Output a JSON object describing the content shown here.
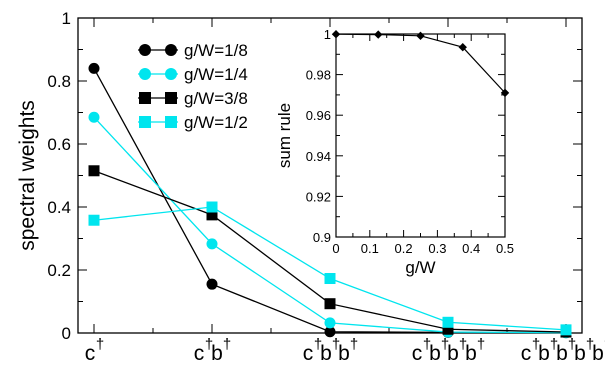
{
  "chart_data": [
    {
      "type": "line",
      "ylabel": "spectral weights",
      "ylim": [
        0,
        1
      ],
      "yticks": [
        0,
        0.2,
        0.4,
        0.6,
        0.8,
        1
      ],
      "ytick_labels": [
        "0",
        "0.2",
        "0.4",
        "0.6",
        "0.8",
        "1"
      ],
      "categories": [
        "c†",
        "c†b†",
        "c†b†b†",
        "c†b†b†b†",
        "c†b†b†b†b†"
      ],
      "category_tokens": [
        [
          "c"
        ],
        [
          "c",
          "b"
        ],
        [
          "c",
          "b",
          "b"
        ],
        [
          "c",
          "b",
          "b",
          "b"
        ],
        [
          "c",
          "b",
          "b",
          "b",
          "b"
        ]
      ],
      "dagger": "†",
      "legend_position": "top-center",
      "series": [
        {
          "name": "g/W=1/8",
          "marker": "circle",
          "color": "#000000",
          "values": [
            0.84,
            0.155,
            0.004,
            0.002,
            0.001
          ]
        },
        {
          "name": "g/W=1/4",
          "marker": "circle",
          "color": "#00e5ee",
          "values": [
            0.685,
            0.283,
            0.032,
            0.003,
            0.001
          ]
        },
        {
          "name": "g/W=3/8",
          "marker": "square",
          "color": "#000000",
          "values": [
            0.515,
            0.375,
            0.093,
            0.012,
            0.003
          ]
        },
        {
          "name": "g/W=1/2",
          "marker": "square",
          "color": "#00e5ee",
          "values": [
            0.358,
            0.4,
            0.173,
            0.034,
            0.01
          ]
        }
      ]
    },
    {
      "type": "line",
      "xlabel": "g/W",
      "ylabel": "sum rule",
      "xlim": [
        0,
        0.5
      ],
      "ylim": [
        0.9,
        1
      ],
      "xticks": [
        0,
        0.1,
        0.2,
        0.3,
        0.4,
        0.5
      ],
      "xtick_labels": [
        "0",
        "0.1",
        "0.2",
        "0.3",
        "0.4",
        "0.5"
      ],
      "yticks": [
        0.9,
        0.92,
        0.94,
        0.96,
        0.98,
        1
      ],
      "ytick_labels": [
        "0.9",
        "0.92",
        "0.94",
        "0.96",
        "0.98",
        "1"
      ],
      "series": [
        {
          "marker": "diamond",
          "color": "#000000",
          "x": [
            0,
            0.125,
            0.25,
            0.375,
            0.5
          ],
          "y": [
            0.9999,
            0.9997,
            0.9991,
            0.9935,
            0.971
          ]
        }
      ]
    }
  ]
}
